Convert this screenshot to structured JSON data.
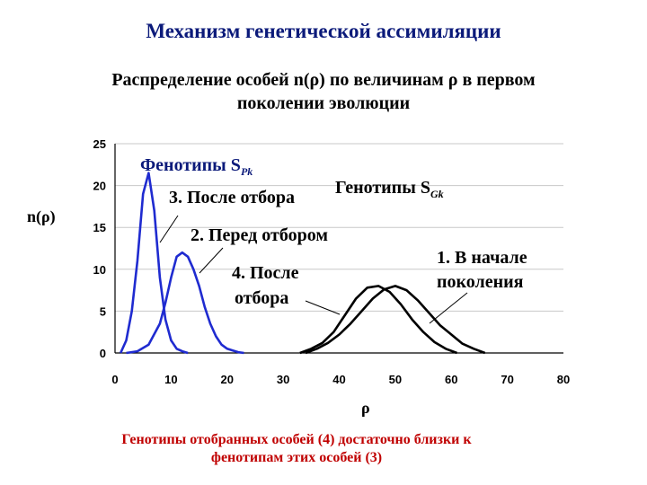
{
  "title": "Механизм генетической ассимиляции",
  "subtitle_line1": "Распределение особей n(ρ) по величинам ρ в первом",
  "subtitle_line2": "поколении эволюции",
  "caption_line1": "Генотипы отобранных особей (4) достаточно близки к",
  "caption_line2": "фенотипам этих особей (3)",
  "colors": {
    "title": "#0b1a7a",
    "phenotype": "#1f2bd0",
    "genotype": "#000000",
    "caption": "#c00000",
    "grid": "#c8c8c8"
  },
  "chart_data": {
    "type": "line",
    "ylabel": "n(ρ)",
    "xlabel": "ρ",
    "xlim": [
      0,
      80
    ],
    "ylim": [
      0,
      25
    ],
    "xticks": [
      "0",
      "10",
      "20",
      "30",
      "40",
      "50",
      "60",
      "70",
      "80"
    ],
    "yticks": [
      "0",
      "5",
      "10",
      "15",
      "20",
      "25"
    ],
    "grid": "horizontal",
    "annotations": {
      "phenotypes": "Фенотипы S",
      "phenotypes_sub": "Pk",
      "genotypes": "Генотипы S",
      "genotypes_sub": "Gk",
      "label3": "3. После отбора",
      "label2": "2. Перед отбором",
      "label4_line1": "4. После",
      "label4_line2": "отбора",
      "label1_line1": "1. В начале",
      "label1_line2": "поколения"
    },
    "series": [
      {
        "id": "phen-after",
        "group": "phenotype",
        "x": [
          1,
          2,
          3,
          4,
          5,
          6,
          7,
          8,
          9,
          10,
          11,
          12,
          13
        ],
        "values": [
          0,
          1.5,
          5,
          11,
          19,
          21.5,
          17,
          9,
          4,
          1.5,
          0.5,
          0.2,
          0
        ]
      },
      {
        "id": "phen-before",
        "group": "phenotype",
        "x": [
          2,
          4,
          6,
          8,
          9,
          10,
          11,
          12,
          13,
          14,
          15,
          16,
          17,
          18,
          19,
          20,
          21,
          22,
          23
        ],
        "values": [
          0,
          0.2,
          1,
          3.5,
          6,
          9,
          11.5,
          12,
          11.5,
          10,
          8,
          5.5,
          3.5,
          2,
          1,
          0.5,
          0.3,
          0.1,
          0
        ]
      },
      {
        "id": "gen-after",
        "group": "genotype",
        "x": [
          33,
          35,
          37,
          39,
          41,
          43,
          45,
          47,
          49,
          51,
          53,
          55,
          57,
          59,
          61
        ],
        "values": [
          0,
          0.5,
          1.2,
          2.5,
          4.5,
          6.5,
          7.8,
          8,
          7.3,
          5.8,
          4,
          2.5,
          1.3,
          0.5,
          0
        ]
      },
      {
        "id": "gen-before",
        "group": "genotype",
        "x": [
          34,
          36,
          38,
          40,
          42,
          44,
          46,
          48,
          50,
          52,
          54,
          56,
          58,
          60,
          62,
          64,
          66
        ],
        "values": [
          0,
          0.5,
          1.2,
          2.2,
          3.5,
          5,
          6.5,
          7.6,
          8,
          7.5,
          6.3,
          4.8,
          3.3,
          2.2,
          1.1,
          0.5,
          0
        ]
      }
    ]
  }
}
